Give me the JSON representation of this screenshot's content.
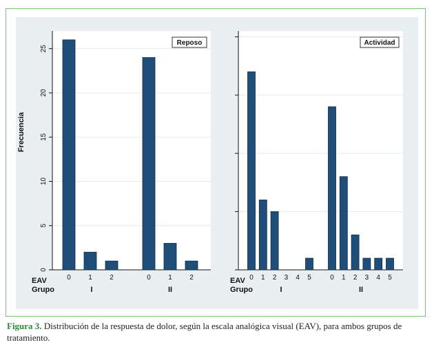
{
  "figure": {
    "caption_label": "Figura 3.",
    "caption_text": " Distribución de la respuesta de dolor, según la escala analógica visual (EAV), para ambos grupos de tratamiento."
  },
  "colors": {
    "bar": "#1f4e79",
    "plot_bg": "#ffffff",
    "panel_bg": "#e9eff1",
    "grid": "#e4eaec",
    "frame": "#7fbf7f",
    "caption_label": "#2e8b3a"
  },
  "chart_data": [
    {
      "type": "bar",
      "panel_label": "Reposo",
      "ylabel": "Frecuencia",
      "ylim": [
        0,
        27
      ],
      "yticks": [
        0,
        5,
        10,
        15,
        20,
        25
      ],
      "show_y_tick_labels": true,
      "row_labels": [
        "EAV",
        "Grupo"
      ],
      "groups": [
        {
          "name": "I",
          "categories": [
            "0",
            "1",
            "2"
          ],
          "values": [
            26,
            2,
            1
          ]
        },
        {
          "name": "II",
          "categories": [
            "0",
            "1",
            "2"
          ],
          "values": [
            24,
            3,
            1
          ]
        }
      ],
      "grid": true,
      "legend_position": "top-right"
    },
    {
      "type": "bar",
      "panel_label": "Actividad",
      "ylabel": "",
      "ylim": [
        0,
        20.5
      ],
      "yticks": [
        0,
        5,
        10,
        15,
        20
      ],
      "show_y_tick_labels": false,
      "row_labels": [
        "EAV",
        "Grupo"
      ],
      "groups": [
        {
          "name": "I",
          "categories": [
            "0",
            "1",
            "2",
            "3",
            "4",
            "5"
          ],
          "values": [
            17,
            6,
            5,
            0,
            0,
            1
          ]
        },
        {
          "name": "II",
          "categories": [
            "0",
            "1",
            "2",
            "3",
            "4",
            "5"
          ],
          "values": [
            14,
            8,
            3,
            1,
            1,
            1
          ]
        }
      ],
      "grid": true,
      "legend_position": "top-right"
    }
  ]
}
